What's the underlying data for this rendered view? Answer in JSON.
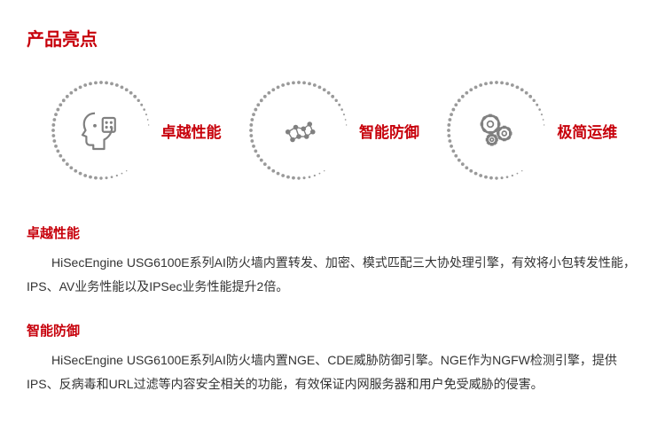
{
  "colors": {
    "accent": "#c7000b",
    "text": "#333333",
    "icon_gray": "#808080",
    "ring_gray": "#9a9a9a",
    "background": "#ffffff"
  },
  "title": "产品亮点",
  "features": [
    {
      "label": "卓越性能",
      "icon": "ai-head-icon"
    },
    {
      "label": "智能防御",
      "icon": "molecule-icon"
    },
    {
      "label": "极简运维",
      "icon": "gears-icon"
    }
  ],
  "sections": [
    {
      "heading": "卓越性能",
      "body": "HiSecEngine USG6100E系列AI防火墙内置转发、加密、模式匹配三大协处理引擎，有效将小包转发性能，IPS、AV业务性能以及IPSec业务性能提升2倍。"
    },
    {
      "heading": "智能防御",
      "body": "HiSecEngine USG6100E系列AI防火墙内置NGE、CDE威胁防御引擎。NGE作为NGFW检测引擎，提供IPS、反病毒和URL过滤等内容安全相关的功能，有效保证内网服务器和用户免受威胁的侵害。"
    }
  ],
  "ring": {
    "dot_count": 56,
    "gap_start_deg": -5,
    "gap_end_deg": 55,
    "dot_radius_max": 1.9,
    "dot_radius_min": 0.6
  }
}
